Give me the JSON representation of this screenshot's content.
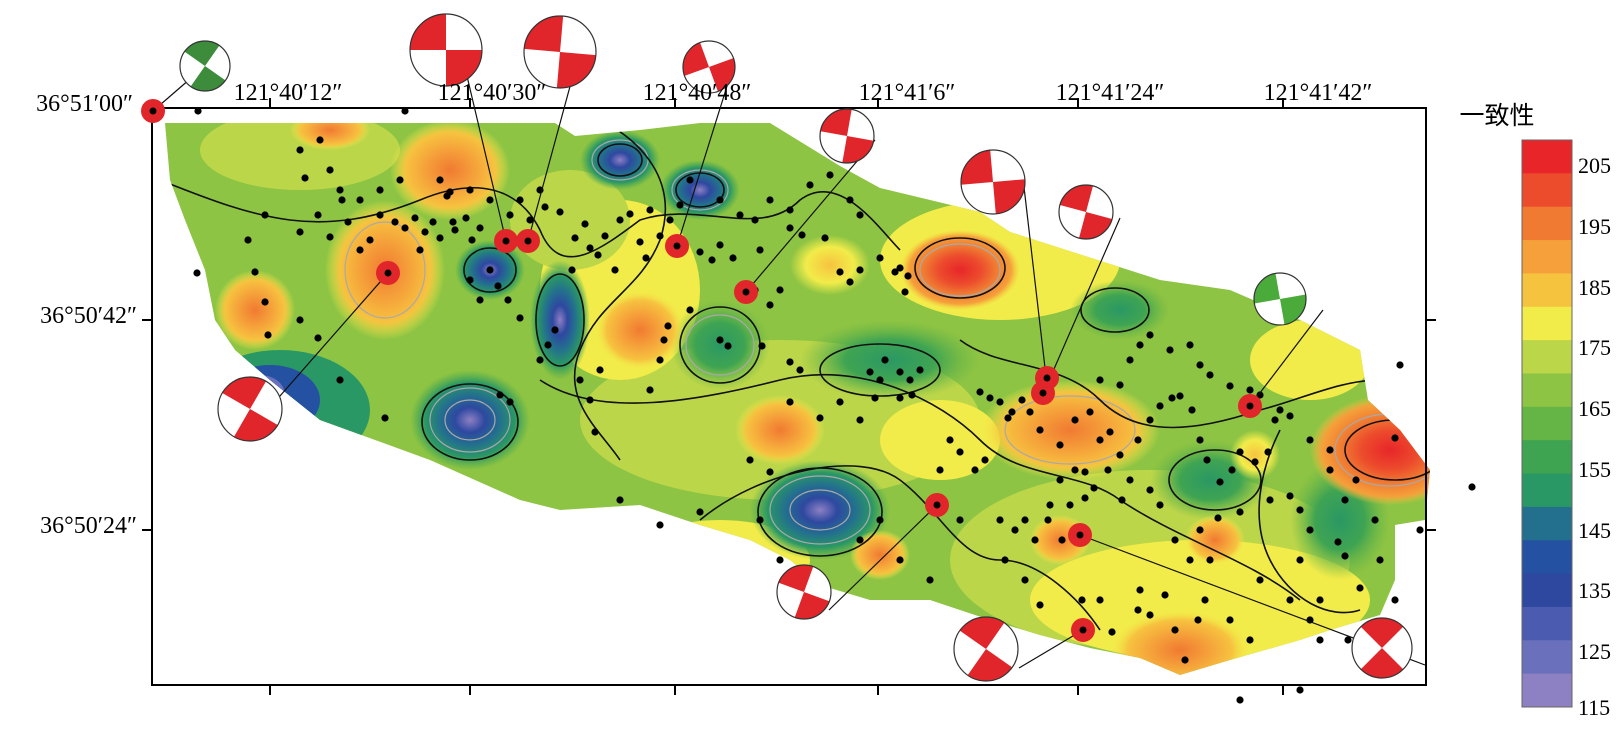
{
  "map": {
    "longitude_labels": [
      "121°40′12″",
      "121°40′30″",
      "121°40′48″",
      "121°41′6″",
      "121°41′24″",
      "121°41′42″"
    ],
    "latitude_labels": [
      "36°51′00″",
      "36°50′42″",
      "36°50′24″"
    ]
  },
  "legend": {
    "title": "一致性",
    "tick_labels": [
      "205",
      "195",
      "185",
      "175",
      "165",
      "155",
      "145",
      "135",
      "125",
      "115"
    ],
    "colors": [
      "#e8262a",
      "#ec4b2c",
      "#f07a32",
      "#f5a03a",
      "#f6c33f",
      "#f2ec4a",
      "#bcd649",
      "#8ec443",
      "#64b446",
      "#3fa452",
      "#2a9864",
      "#23708e",
      "#2551a2",
      "#2e48a0",
      "#4a5bb0",
      "#6a70bc",
      "#8d80c3"
    ]
  },
  "focal_mechanisms": [
    {
      "color": "#3c8c3c"
    },
    {
      "color": "#e0262a"
    },
    {
      "color": "#e0262a"
    },
    {
      "color": "#e0262a"
    },
    {
      "color": "#e0262a"
    },
    {
      "color": "#e0262a"
    },
    {
      "color": "#e0262a"
    },
    {
      "color": "#e0262a"
    },
    {
      "color": "#4aaa3a"
    },
    {
      "color": "#e0262a"
    },
    {
      "color": "#e0262a"
    },
    {
      "color": "#e0262a"
    }
  ]
}
